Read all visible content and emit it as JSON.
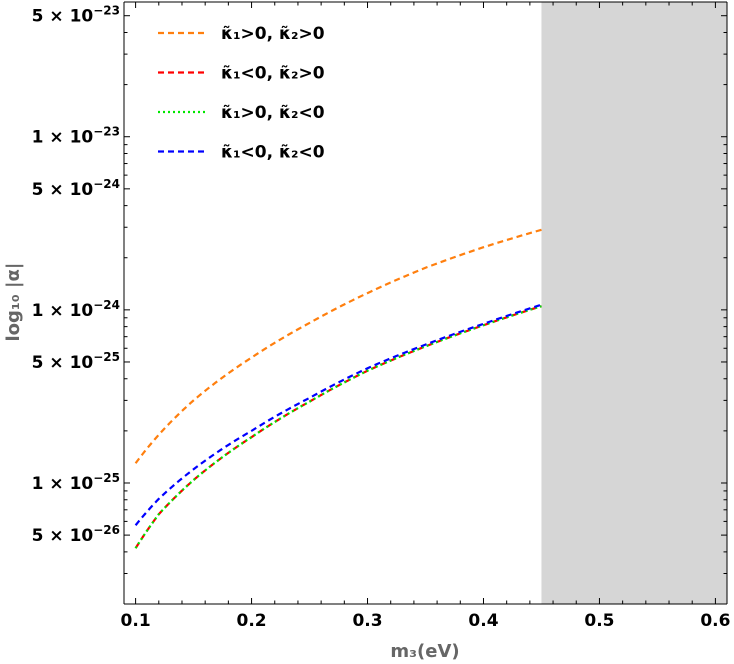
{
  "chart_data": {
    "type": "line",
    "title": "",
    "xlabel": "m₃(eV)",
    "ylabel": "log₁₀ |α|",
    "xlim": [
      0.09,
      0.61
    ],
    "ylim": [
      2e-26,
      6e-23
    ],
    "y_scale": "log",
    "x_ticks": [
      {
        "value": 0.1,
        "label": "0.1"
      },
      {
        "value": 0.2,
        "label": "0.2"
      },
      {
        "value": 0.3,
        "label": "0.3"
      },
      {
        "value": 0.4,
        "label": "0.4"
      },
      {
        "value": 0.5,
        "label": "0.5"
      },
      {
        "value": 0.6,
        "label": "0.6"
      }
    ],
    "y_ticks": [
      {
        "value": 5e-26,
        "label": "5 × 10",
        "exp": "−26"
      },
      {
        "value": 1e-25,
        "label": "1 × 10",
        "exp": "−25"
      },
      {
        "value": 5e-25,
        "label": "5 × 10",
        "exp": "−25"
      },
      {
        "value": 1e-24,
        "label": "1 × 10",
        "exp": "−24"
      },
      {
        "value": 5e-24,
        "label": "5 × 10",
        "exp": "−24"
      },
      {
        "value": 1e-23,
        "label": "1 × 10",
        "exp": "−23"
      },
      {
        "value": 5e-23,
        "label": "5 × 10",
        "exp": "−23"
      }
    ],
    "shaded_region": {
      "x_from": 0.45,
      "x_to": 0.61,
      "color": "#d6d6d6"
    },
    "grid": false,
    "legend_position": "top-left",
    "x": [
      0.1,
      0.12,
      0.15,
      0.2,
      0.25,
      0.3,
      0.35,
      0.4,
      0.45
    ],
    "series": [
      {
        "name": "κ̃₁>0, κ̃₂>0",
        "color": "#ff7f0e",
        "dash": "dashed",
        "values": [
          1.3e-25,
          1.9e-25,
          3e-25,
          5.3e-25,
          8.4e-25,
          1.25e-24,
          1.75e-24,
          2.3e-24,
          2.9e-24
        ]
      },
      {
        "name": "κ̃₁<0, κ̃₂>0",
        "color": "#ff0000",
        "dash": "dashed",
        "values": [
          4.2e-26,
          6.6e-26,
          1.04e-25,
          1.84e-25,
          2.95e-25,
          4.45e-25,
          6.15e-25,
          8.15e-25,
          1.05e-24
        ]
      },
      {
        "name": "κ̃₁>0, κ̃₂<0",
        "color": "#00e600",
        "dash": "dotted",
        "values": [
          4.2e-26,
          6.6e-26,
          1.04e-25,
          1.84e-25,
          2.95e-25,
          4.45e-25,
          6.15e-25,
          8.15e-25,
          1.05e-24
        ]
      },
      {
        "name": "κ̃₁<0, κ̃₂<0",
        "color": "#0000ff",
        "dash": "dashed",
        "values": [
          5.7e-26,
          8.1e-26,
          1.2e-25,
          2e-25,
          3.1e-25,
          4.6e-25,
          6.3e-25,
          8.3e-25,
          1.07e-24
        ]
      }
    ]
  }
}
